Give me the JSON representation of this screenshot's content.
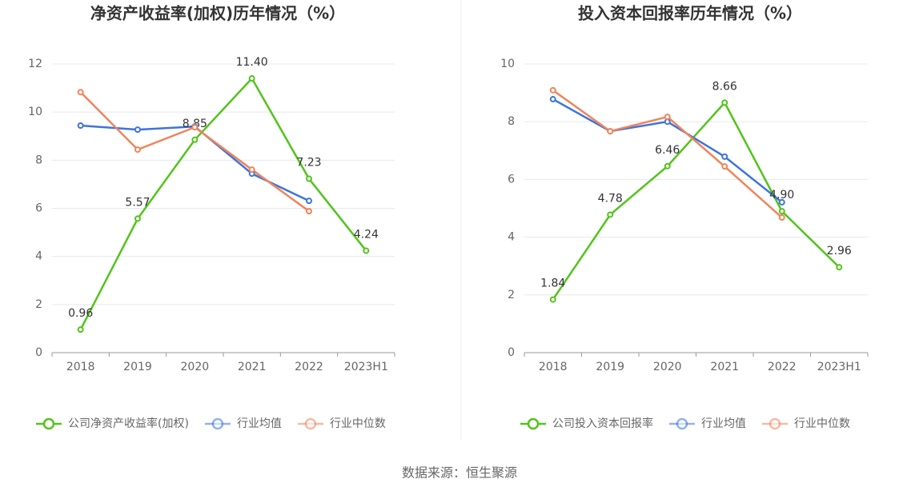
{
  "chart_data": [
    {
      "type": "line",
      "title": "净资产收益率(加权)历年情况（%）",
      "categories": [
        "2018",
        "2019",
        "2020",
        "2021",
        "2022",
        "2023H1"
      ],
      "ylim": [
        0,
        12
      ],
      "yticks": [
        0,
        2,
        4,
        6,
        8,
        10,
        12
      ],
      "grid": true,
      "series": [
        {
          "name": "公司净资产收益率(加权)",
          "color": "#52c41a",
          "values": [
            0.96,
            5.57,
            8.85,
            11.4,
            7.23,
            4.24
          ],
          "value_labels": [
            "0.96",
            "5.57",
            "8.85",
            "11.40",
            "7.23",
            "4.24"
          ]
        },
        {
          "name": "行业均值",
          "color": "#3d74db",
          "values": [
            9.44,
            9.27,
            9.4,
            7.44,
            6.31,
            null
          ]
        },
        {
          "name": "行业中位数",
          "color": "#f0845a",
          "values": [
            10.83,
            8.44,
            9.37,
            7.61,
            5.88,
            null
          ]
        }
      ]
    },
    {
      "type": "line",
      "title": "投入资本回报率历年情况（%）",
      "categories": [
        "2018",
        "2019",
        "2020",
        "2021",
        "2022",
        "2023H1"
      ],
      "ylim": [
        0,
        10
      ],
      "yticks": [
        0,
        2,
        4,
        6,
        8,
        10
      ],
      "grid": true,
      "series": [
        {
          "name": "公司投入资本回报率",
          "color": "#52c41a",
          "values": [
            1.84,
            4.78,
            6.46,
            8.66,
            4.9,
            2.96
          ],
          "value_labels": [
            "1.84",
            "4.78",
            "6.46",
            "8.66",
            "4.90",
            "2.96"
          ]
        },
        {
          "name": "行业均值",
          "color": "#3d74db",
          "values": [
            8.78,
            7.67,
            8.0,
            6.79,
            5.21,
            null
          ]
        },
        {
          "name": "行业中位数",
          "color": "#f0845a",
          "values": [
            9.09,
            7.67,
            8.17,
            6.45,
            4.68,
            null
          ]
        }
      ]
    }
  ],
  "source": "数据来源：恒生聚源"
}
